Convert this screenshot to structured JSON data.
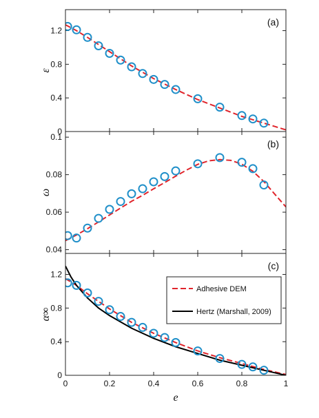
{
  "chart_data": [
    {
      "type": "scatter",
      "panel_label": "(a)",
      "ylabel": "ε",
      "xlim": [
        0,
        1
      ],
      "ylim": [
        0,
        1.45
      ],
      "yticks": [
        "0",
        "0.4",
        "0.8",
        "1.2"
      ],
      "ytick_values": [
        0,
        0.4,
        0.8,
        1.2
      ],
      "series": [
        {
          "kind": "points",
          "color": "#1f8fc9",
          "x": [
            0.01,
            0.05,
            0.1,
            0.15,
            0.2,
            0.25,
            0.3,
            0.35,
            0.4,
            0.45,
            0.5,
            0.6,
            0.7,
            0.8,
            0.85,
            0.9
          ],
          "y": [
            1.25,
            1.21,
            1.12,
            1.02,
            0.93,
            0.85,
            0.77,
            0.69,
            0.62,
            0.56,
            0.5,
            0.39,
            0.29,
            0.19,
            0.15,
            0.1
          ]
        },
        {
          "kind": "line",
          "style": "dashed",
          "color": "#e0242b",
          "x": [
            0,
            0.05,
            0.1,
            0.2,
            0.3,
            0.4,
            0.5,
            0.6,
            0.7,
            0.8,
            0.9,
            0.95,
            1.0
          ],
          "y": [
            1.27,
            1.2,
            1.12,
            0.95,
            0.78,
            0.63,
            0.5,
            0.38,
            0.28,
            0.18,
            0.1,
            0.06,
            0.02
          ]
        }
      ]
    },
    {
      "type": "scatter",
      "panel_label": "(b)",
      "ylabel": "ω",
      "xlim": [
        0,
        1
      ],
      "ylim": [
        0.038,
        0.103
      ],
      "yticks": [
        "0.04",
        "0.06",
        "0.08",
        "0.1"
      ],
      "ytick_values": [
        0.04,
        0.06,
        0.08,
        0.1
      ],
      "series": [
        {
          "kind": "points",
          "color": "#1f8fc9",
          "x": [
            0.01,
            0.05,
            0.1,
            0.15,
            0.2,
            0.25,
            0.3,
            0.35,
            0.4,
            0.45,
            0.5,
            0.6,
            0.7,
            0.8,
            0.85,
            0.9
          ],
          "y": [
            0.0475,
            0.0462,
            0.0515,
            0.0567,
            0.0615,
            0.0657,
            0.0698,
            0.0725,
            0.0762,
            0.079,
            0.082,
            0.0858,
            0.0891,
            0.0866,
            0.0832,
            0.0745
          ]
        },
        {
          "kind": "line",
          "style": "dashed",
          "color": "#e0242b",
          "x": [
            0,
            0.05,
            0.1,
            0.15,
            0.2,
            0.25,
            0.3,
            0.35,
            0.4,
            0.45,
            0.5,
            0.55,
            0.6,
            0.65,
            0.7,
            0.75,
            0.8,
            0.85,
            0.9,
            0.95,
            1.0
          ],
          "y": [
            0.0448,
            0.0478,
            0.0512,
            0.0548,
            0.0585,
            0.0622,
            0.0658,
            0.069,
            0.0725,
            0.0758,
            0.0792,
            0.0825,
            0.0855,
            0.0874,
            0.088,
            0.0876,
            0.0856,
            0.0818,
            0.0763,
            0.0695,
            0.0628
          ]
        }
      ]
    },
    {
      "type": "scatter",
      "panel_label": "(c)",
      "ylabel": "α∞",
      "xlabel": "e",
      "xlim": [
        0,
        1
      ],
      "ylim": [
        0,
        1.45
      ],
      "xticks": [
        "0",
        "0.2",
        "0.4",
        "0.6",
        "0.8",
        "1"
      ],
      "xtick_values": [
        0,
        0.2,
        0.4,
        0.6,
        0.8,
        1
      ],
      "yticks": [
        "0",
        "0.4",
        "0.8",
        "1.2"
      ],
      "ytick_values": [
        0,
        0.4,
        0.8,
        1.2
      ],
      "legend": {
        "placement": "right-middle",
        "entries": [
          {
            "label": "Adhesive DEM",
            "style": "dashed",
            "color": "#e0242b"
          },
          {
            "label": "Hertz (Marshall, 2009)",
            "style": "solid",
            "color": "#000000"
          }
        ]
      },
      "series": [
        {
          "kind": "points",
          "color": "#1f8fc9",
          "x": [
            0.01,
            0.05,
            0.1,
            0.15,
            0.2,
            0.25,
            0.3,
            0.35,
            0.4,
            0.45,
            0.5,
            0.6,
            0.7,
            0.8,
            0.85,
            0.9
          ],
          "y": [
            1.1,
            1.07,
            0.98,
            0.88,
            0.78,
            0.7,
            0.63,
            0.57,
            0.5,
            0.45,
            0.39,
            0.29,
            0.2,
            0.13,
            0.1,
            0.06
          ]
        },
        {
          "kind": "line",
          "style": "dashed",
          "color": "#e0242b",
          "label": "Adhesive DEM",
          "x": [
            0,
            0.05,
            0.1,
            0.2,
            0.3,
            0.4,
            0.5,
            0.6,
            0.7,
            0.8,
            0.9,
            1.0
          ],
          "y": [
            1.15,
            1.07,
            0.97,
            0.79,
            0.63,
            0.5,
            0.39,
            0.29,
            0.21,
            0.14,
            0.07,
            0.01
          ]
        },
        {
          "kind": "line",
          "style": "solid",
          "color": "#000000",
          "label": "Hertz (Marshall, 2009)",
          "x": [
            0,
            0.025,
            0.05,
            0.1,
            0.15,
            0.2,
            0.3,
            0.4,
            0.5,
            0.6,
            0.7,
            0.8,
            0.9,
            1.0
          ],
          "y": [
            1.3,
            1.17,
            1.07,
            0.92,
            0.8,
            0.71,
            0.56,
            0.44,
            0.34,
            0.26,
            0.18,
            0.12,
            0.06,
            0.0
          ]
        }
      ]
    }
  ]
}
